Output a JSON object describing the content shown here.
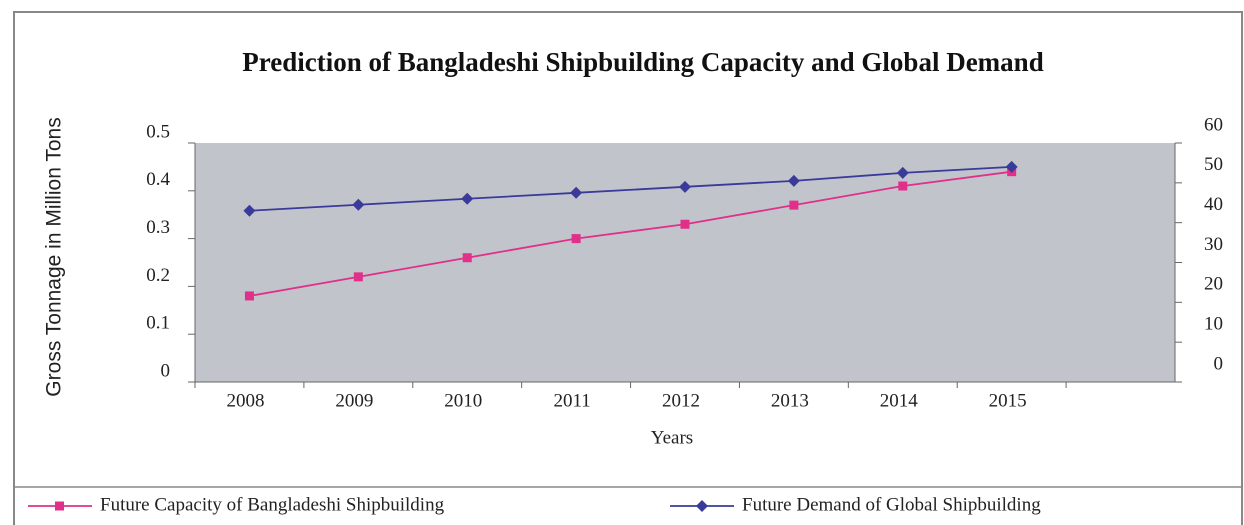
{
  "chart_data": {
    "type": "line",
    "title": "Prediction of Bangladeshi Shipbuilding Capacity and Global Demand",
    "xlabel": "Years",
    "ylabel": "Gross Tonnage in Million Tons",
    "categories": [
      "2008",
      "2009",
      "2010",
      "2011",
      "2012",
      "2013",
      "2014",
      "2015",
      null
    ],
    "series": [
      {
        "name": "Future Capacity of Bangladeshi Shipbuilding",
        "color": "#e0308a",
        "marker": "square",
        "values": [
          0.18,
          0.22,
          0.26,
          0.3,
          0.33,
          0.37,
          0.41,
          0.44,
          null
        ]
      },
      {
        "name": "Future Demand of Global Shipbuilding",
        "color": "#3a3a9a",
        "marker": "diamond",
        "axis": "y2",
        "values": [
          43,
          44.5,
          46,
          47.5,
          49,
          50.5,
          52.5,
          54,
          null
        ]
      }
    ],
    "ylim": [
      0,
      0.5
    ],
    "yticks": [
      0,
      0.1,
      0.2,
      0.3,
      0.4,
      0.5
    ],
    "y2lim": [
      0,
      60
    ],
    "y2ticks": [
      0,
      10,
      20,
      30,
      40,
      50,
      60
    ],
    "plot_background": "#c2c4cc",
    "legend": "bottom"
  }
}
